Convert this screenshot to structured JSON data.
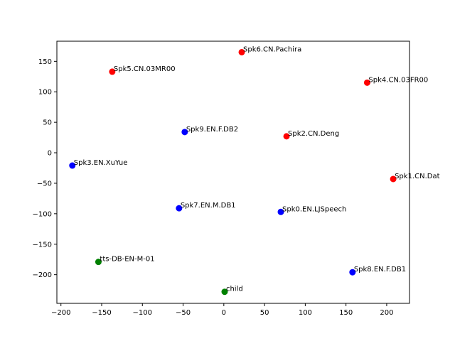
{
  "chart_data": {
    "type": "scatter",
    "title": "",
    "xlabel": "",
    "ylabel": "",
    "xlim": [
      -205,
      228
    ],
    "ylim": [
      -247,
      183
    ],
    "grid": false,
    "xticks": [
      -200,
      -150,
      -100,
      -50,
      0,
      50,
      100,
      150,
      200
    ],
    "yticks": [
      -200,
      -150,
      -100,
      -50,
      0,
      50,
      100,
      150
    ],
    "colors": {
      "red": "#ff0000",
      "blue": "#0000ff",
      "green": "#008000"
    },
    "points": [
      {
        "label": "Spk6.CN.Pachira",
        "x": 22,
        "y": 165,
        "color": "red"
      },
      {
        "label": "Spk5.CN.03MR00",
        "x": -137,
        "y": 133,
        "color": "red"
      },
      {
        "label": "Spk4.CN.03FR00",
        "x": 176,
        "y": 115,
        "color": "red"
      },
      {
        "label": "Spk9.EN.F.DB2",
        "x": -48,
        "y": 34,
        "color": "blue"
      },
      {
        "label": "Spk2.CN.Deng",
        "x": 77,
        "y": 27,
        "color": "red"
      },
      {
        "label": "Spk3.EN.XuYue",
        "x": -186,
        "y": -21,
        "color": "blue"
      },
      {
        "label": "Spk1.CN.Dat",
        "x": 208,
        "y": -43,
        "color": "red"
      },
      {
        "label": "Spk7.EN.M.DB1",
        "x": -55,
        "y": -91,
        "color": "blue"
      },
      {
        "label": "Spk0.EN.LJSpeech",
        "x": 70,
        "y": -97,
        "color": "blue"
      },
      {
        "label": "tts-DB-EN-M-01",
        "x": -154,
        "y": -179,
        "color": "green"
      },
      {
        "label": "Spk8.EN.F.DB1",
        "x": 158,
        "y": -196,
        "color": "blue"
      },
      {
        "label": "child",
        "x": 1,
        "y": -228,
        "color": "green"
      }
    ]
  }
}
